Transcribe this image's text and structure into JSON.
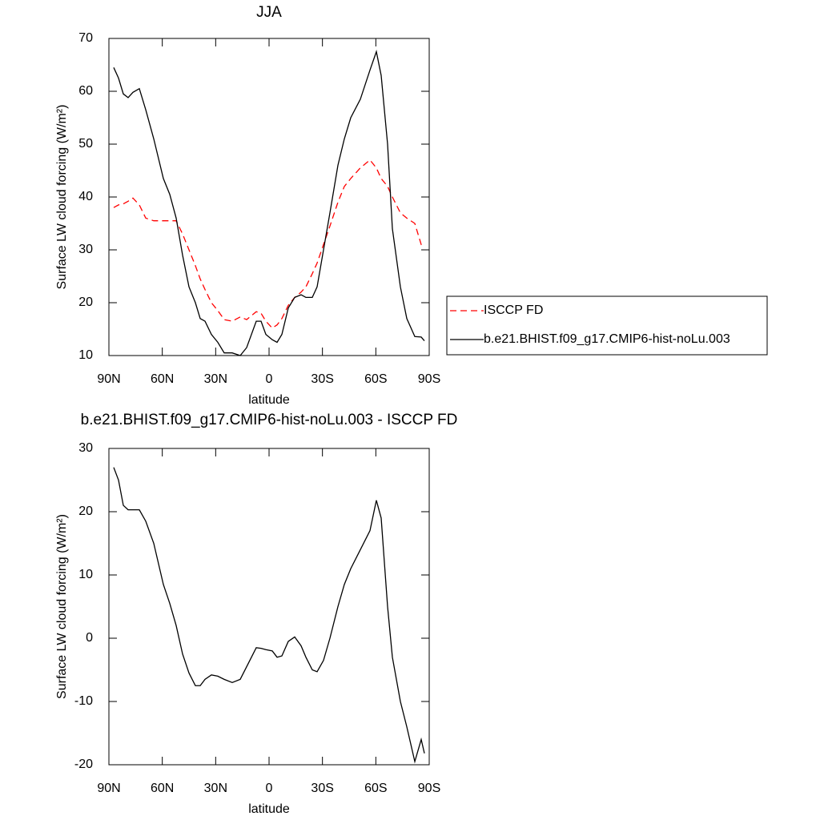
{
  "chart_data": [
    {
      "type": "line",
      "title": "JJA",
      "xlabel": "latitude",
      "ylabel": "Surface LW cloud forcing (W/m²)",
      "x": [
        87.3,
        84.6,
        81.9,
        79.2,
        76.5,
        72.9,
        69.3,
        64.8,
        59.4,
        55.8,
        52.2,
        48.6,
        45,
        41.4,
        38.7,
        36,
        32.4,
        28.8,
        25.2,
        20.7,
        16.2,
        12.6,
        7.2,
        4.5,
        1.8,
        -1.8,
        -4.5,
        -7.2,
        -10.8,
        -14.4,
        -18,
        -20.7,
        -24.3,
        -27,
        -30.6,
        -34.2,
        -38.7,
        -42.3,
        -45.9,
        -51.3,
        -56.7,
        -60.3,
        -63,
        -66.6,
        -69.3,
        -73.8,
        -77.4,
        -81.9,
        -85.5,
        -87.3
      ],
      "series": [
        {
          "name": "ISCCP FD",
          "color": "#ff0000",
          "line_style": "dashed",
          "values": [
            38,
            38.5,
            38.7,
            39.2,
            39.8,
            38.5,
            36,
            35.5,
            35.5,
            35.5,
            35.5,
            33,
            30,
            27,
            24.5,
            22.5,
            20,
            18.5,
            16.8,
            16.5,
            17.3,
            16.8,
            18.3,
            18,
            16.5,
            15.2,
            15.8,
            17,
            19.5,
            21,
            22,
            23,
            25.5,
            27.5,
            31,
            34.5,
            39,
            42,
            43.5,
            45.5,
            47,
            45.5,
            43.5,
            42,
            40,
            37,
            36,
            35,
            31,
            30.5
          ]
        },
        {
          "name": "b.e21.BHIST.f09_g17.CMIP6-hist-noLu.003",
          "color": "#000000",
          "line_style": "solid",
          "values": [
            64.5,
            62.5,
            59.5,
            58.8,
            59.8,
            60.5,
            56.5,
            51,
            43.5,
            40.5,
            36,
            29,
            23,
            20,
            17,
            16.5,
            14,
            12.5,
            10.5,
            10.5,
            10,
            11.5,
            16.5,
            16.5,
            14,
            13,
            12.5,
            14,
            19,
            21,
            21.5,
            21,
            21,
            23,
            30,
            37,
            46,
            51,
            55,
            58.5,
            64,
            67.5,
            63,
            50,
            34,
            23,
            17,
            13.6,
            13.5,
            12.8
          ]
        }
      ],
      "xlim": [
        90,
        -90
      ],
      "xticks": [
        {
          "value": 90,
          "label": "90N"
        },
        {
          "value": 60,
          "label": "60N"
        },
        {
          "value": 30,
          "label": "30N"
        },
        0,
        {
          "value": -30,
          "label": "30S"
        },
        {
          "value": -60,
          "label": "60S"
        },
        {
          "value": -90,
          "label": "90S"
        }
      ],
      "ylim": [
        10,
        70
      ],
      "yticks": [
        10,
        20,
        30,
        40,
        50,
        60,
        70
      ],
      "legend": "right"
    },
    {
      "type": "line",
      "title": "b.e21.BHIST.f09_g17.CMIP6-hist-noLu.003 - ISCCP FD",
      "xlabel": "latitude",
      "ylabel": "Surface LW cloud forcing (W/m²)",
      "x": [
        87.3,
        84.6,
        81.9,
        79.2,
        76.5,
        72.9,
        69.3,
        64.8,
        59.4,
        55.8,
        52.2,
        48.6,
        45,
        41.4,
        38.7,
        36,
        32.4,
        28.8,
        25.2,
        20.7,
        16.2,
        12.6,
        7.2,
        4.5,
        1.8,
        -1.8,
        -4.5,
        -7.2,
        -10.8,
        -14.4,
        -18,
        -20.7,
        -24.3,
        -27,
        -30.6,
        -34.2,
        -38.7,
        -42.3,
        -45.9,
        -51.3,
        -56.7,
        -60.3,
        -63,
        -66.6,
        -69.3,
        -73.8,
        -77.4,
        -81.9,
        -85.5,
        -87.3
      ],
      "values": [
        27,
        25,
        21,
        20.3,
        20.3,
        20.3,
        18.5,
        15,
        8.5,
        5.5,
        2,
        -2.5,
        -5.5,
        -7.5,
        -7.5,
        -6.5,
        -5.8,
        -6,
        -6.5,
        -7,
        -6.5,
        -4.5,
        -1.5,
        -1.6,
        -1.8,
        -2,
        -3,
        -2.8,
        -0.5,
        0.2,
        -1.2,
        -3,
        -5,
        -5.3,
        -3.5,
        0,
        5,
        8.5,
        11,
        14,
        17,
        21.8,
        19,
        5,
        -3,
        -10,
        -14,
        -19.5,
        -16,
        -18.2
      ],
      "color": "#000000",
      "xlim": [
        90,
        -90
      ],
      "xticks": [
        {
          "value": 90,
          "label": "90N"
        },
        {
          "value": 60,
          "label": "60N"
        },
        {
          "value": 30,
          "label": "30N"
        },
        0,
        {
          "value": -30,
          "label": "30S"
        },
        {
          "value": -60,
          "label": "60S"
        },
        {
          "value": -90,
          "label": "90S"
        }
      ],
      "ylim": [
        -20,
        30
      ],
      "yticks": [
        -20,
        -10,
        0,
        10,
        20,
        30
      ]
    }
  ]
}
